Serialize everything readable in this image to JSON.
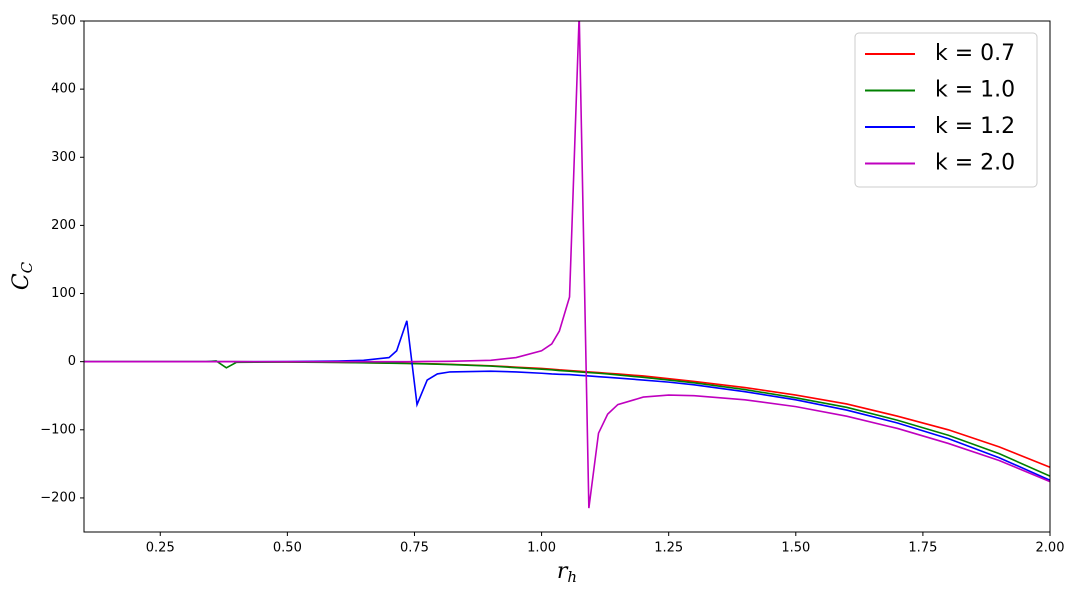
{
  "chart_data": {
    "type": "line",
    "xlabel": {
      "base": "r",
      "sub": "h"
    },
    "ylabel": {
      "base": "C",
      "sub": "C"
    },
    "x": [
      0.1,
      0.2,
      0.3,
      0.34,
      0.36,
      0.38,
      0.4,
      0.5,
      0.6,
      0.65,
      0.7,
      0.715,
      0.735,
      0.755,
      0.775,
      0.795,
      0.82,
      0.9,
      0.95,
      1.0,
      1.02,
      1.035,
      1.055,
      1.074,
      1.093,
      1.112,
      1.13,
      1.15,
      1.2,
      1.25,
      1.3,
      1.4,
      1.5,
      1.6,
      1.7,
      1.8,
      1.9,
      2.0
    ],
    "series": [
      {
        "name": "k = 0.7",
        "color": "#ff0000",
        "values": [
          0,
          0,
          0,
          0,
          0,
          0,
          -0.1,
          -0.5,
          -1,
          -1.5,
          -2,
          -2.2,
          -2.5,
          -2.8,
          -3,
          -3.4,
          -3.8,
          -6,
          -8,
          -10,
          -11,
          -12,
          -13,
          -14,
          -15,
          -16,
          -17,
          -18,
          -21,
          -25,
          -29,
          -38,
          -49,
          -62,
          -80,
          -100,
          -125,
          -155
        ]
      },
      {
        "name": "k = 1.0",
        "color": "#008000",
        "values": [
          0,
          0,
          0,
          0,
          1,
          -9,
          -1,
          -0.6,
          -1.2,
          -1.7,
          -2.2,
          -2.4,
          -2.7,
          -3,
          -3.3,
          -3.7,
          -4.2,
          -6.5,
          -8.8,
          -11,
          -12,
          -13,
          -14,
          -15,
          -16,
          -17,
          -18,
          -19.5,
          -23,
          -27,
          -31,
          -41,
          -53,
          -67,
          -86,
          -108,
          -135,
          -168
        ]
      },
      {
        "name": "k = 1.2",
        "color": "#0000ff",
        "values": [
          0,
          0,
          0,
          0,
          0,
          0,
          0,
          0.2,
          1,
          2,
          6,
          16,
          60,
          -63,
          -27,
          -18,
          -15,
          -14,
          -15,
          -17,
          -18,
          -18.5,
          -19,
          -20,
          -21,
          -22,
          -23,
          -24,
          -27,
          -30,
          -34,
          -44,
          -56,
          -71,
          -90,
          -113,
          -141,
          -174
        ]
      },
      {
        "name": "k = 2.0",
        "color": "#bf00bf",
        "values": [
          0,
          0,
          0,
          0,
          0,
          0,
          0,
          0,
          0,
          0,
          0,
          0,
          0,
          0.2,
          0.3,
          0.4,
          0.5,
          2,
          6,
          16,
          26,
          45,
          95,
          510,
          -215,
          -105,
          -77,
          -63,
          -52,
          -49,
          -50,
          -56,
          -66,
          -80,
          -98,
          -120,
          -145,
          -176
        ]
      }
    ],
    "xlim": [
      0.1,
      2.0
    ],
    "ylim": [
      -250,
      500
    ],
    "xticks": [
      {
        "value": 0.25,
        "label": "0.25"
      },
      {
        "value": 0.5,
        "label": "0.50"
      },
      {
        "value": 0.75,
        "label": "0.75"
      },
      {
        "value": 1.0,
        "label": "1.00"
      },
      {
        "value": 1.25,
        "label": "1.25"
      },
      {
        "value": 1.5,
        "label": "1.50"
      },
      {
        "value": 1.75,
        "label": "1.75"
      },
      {
        "value": 2.0,
        "label": "2.00"
      }
    ],
    "yticks": [
      {
        "value": -200,
        "label": "−200"
      },
      {
        "value": -100,
        "label": "−100"
      },
      0,
      100,
      200,
      300,
      400,
      500
    ],
    "legend": "upper right"
  }
}
